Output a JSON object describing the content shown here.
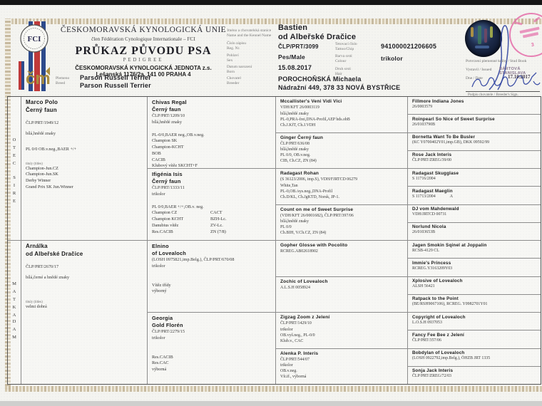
{
  "header": {
    "union": "ČESKOMORAVSKÁ KYNOLOGICKÁ UNIE",
    "member_line": "člen Fédération Cynologique Internationale – FCI",
    "doc_title": "PRŮKAZ PŮVODU PSA",
    "doc_subtitle": "PEDIGREE",
    "org_name": "ČESKOMORAVSKÁ KYNOLOGICKÁ JEDNOTA z.s.",
    "org_address": "Lešanská 1176/2a, 141 00 PRAHA 4",
    "breed_label": {
      "cz": "Plemeno",
      "en": "Breed"
    },
    "breed": [
      "Parson Russell Terrier",
      "Parson Russell Terrier"
    ],
    "fci_logo_text": "FCI",
    "cmku_logo_text": "čm"
  },
  "dog": {
    "labels": {
      "name": {
        "cz": "Jméno a chovatelská stanice",
        "en": "Name and the Kennel Name"
      },
      "reg": {
        "cz": "Číslo zápisu",
        "en": "Reg. Nr."
      },
      "sex": {
        "cz": "Pohlaví",
        "en": "Sex"
      },
      "born": {
        "cz": "Datum narození",
        "en": "Born"
      },
      "breeder": {
        "cz": "Chovatel",
        "en": "Breeder"
      },
      "tattoo": {
        "cz": "Tetovací číslo",
        "en": "Tattoo/Chip"
      },
      "colour": {
        "cz": "Barva srsti",
        "en": "Colour"
      },
      "hair": {
        "cz": "Druh srsti",
        "en": "Hair"
      }
    },
    "name": [
      "Bastien",
      "od Albeřské Dračice"
    ],
    "reg_no": "ČLP/PRT/3099",
    "sex": "Pes/Male",
    "born": "15.08.2017",
    "tattoo": "941000021206605",
    "colour": "trikolor",
    "hair": "",
    "breeder": [
      "POROCHOŇSKÁ Michaela",
      "Nádražní 449, 378 33 NOVÁ BYSTŘICE"
    ]
  },
  "certification": {
    "studbook_label": "Potvrzení plemenné knihy / Stud Book",
    "issued_label": "Vystavil / Issued",
    "issued_by": "BÁRTOVÁ STANISLAVA",
    "date_label": "Dne / Date",
    "date": "17.10.2017",
    "sign_label": "Podpis chovatele / Breeder's Sign.",
    "stamp_digit": "3"
  },
  "colors": {
    "accent_red": "#c03a3a",
    "accent_blue": "#2c4a8c",
    "stamp_pink": "#e56ca9",
    "signature_blue": "#2b3f9e",
    "logo_gold": "#a98d3f"
  },
  "pedigree": {
    "vertical": {
      "sire_cz": "OTEC",
      "sire_en": "SIRE",
      "dam_cz": "MATKA",
      "dam_en": "DAM"
    },
    "titles_label": "tituly (titles)",
    "gen1": [
      {
        "name": [
          "Marco Polo",
          "Černý faun"
        ],
        "reg": "ČLP/PRT/1949/12",
        "colour": "bílá,hnědé znaky",
        "health": "PL 0/0 OB.v.neg.,BAER +/+",
        "titles_label": true,
        "titles": [
          "Champion-Jun.CZ",
          "Champion-Jun.SK",
          "Derby Winner",
          "Grand Prix SK Jun.Winner"
        ]
      },
      {
        "name": [
          "Arnálka",
          "od Albeřské Dračice"
        ],
        "reg": "ČLP/PRT/2670/17",
        "colour": "bílá,černé a hnědé znaky",
        "titles_label": true,
        "titles": [
          "velmi dobrá"
        ]
      }
    ],
    "gen2": [
      {
        "name": [
          "Chivas Regal",
          "Černý faun"
        ],
        "reg": "ČLP/PRT/1209/10",
        "colour": "bílá,hnědé znaky",
        "health": "PL-0/0,BAER neg.,OB.v.neg.",
        "titles": [
          "Champion SK",
          "Champion-KCHT",
          "BOB",
          "CACIB",
          "Klubový vítěz SKCHT+F"
        ]
      },
      {
        "name": [
          "Ifigénia Isis",
          "Černý faun"
        ],
        "reg": "ČLP/PRT/1333/11",
        "colour": "trikolor",
        "health": "PL 0/0,BAER +/+,OB.v. neg.",
        "titles": [
          "Champion CZ",
          "Champion KCHT",
          "Danubius vítěz",
          "Res.CACIB"
        ],
        "titles2": [
          "CACT",
          "BZH-Lc.",
          "ZV-Lc.",
          "ZN (7/8)"
        ]
      },
      {
        "name": [
          "Elnino",
          "of Lovealoch"
        ],
        "reg": "(LOSH 0975821,imp.Belg.), ČLP/PRT/670/08",
        "colour": "trikolor",
        "titles": [
          "Vítěz třídy",
          "výborný"
        ]
      },
      {
        "name": [
          "Georgia",
          "Gold Florén"
        ],
        "reg": "ČLP/PRT/2279/15",
        "colour": "trikolor",
        "titles": [
          "Res.CACIB",
          "Res.CAC",
          "výborná"
        ]
      }
    ],
    "gen3": [
      {
        "name": "Mccallister's Veni Vidi Vici",
        "lines": [
          "VDH/KFT 26/0003119",
          "bílá,hnědé znaky",
          "PL-0,PRA-frei,DNA-Profil,AEP bds.obB",
          "Ch.J.KfT, Ch.J.VDH"
        ]
      },
      {
        "name": "Ginger Černý faun",
        "lines": [
          "ČLP/PRT/636/08",
          "bílá,hnědé znaky",
          "PL 0/0, OB.v.neg.",
          "CIB, Ch.CZ, ZN (84)"
        ]
      },
      {
        "name": "Radagast Rohan",
        "lines": [
          "(S 36123/2006, imp.S), VDH/FJRTCD 06279",
          "White,Tan",
          "PL-0,OB./sys.neg.,DNA-Profil",
          "Ch.D/KL, Ch.JgKTD, Norsk, JP-1."
        ]
      },
      {
        "name": "Count on me of Sweet Surprise",
        "lines": [
          "(VDH/KFT 26/0001682), ČLP/PRT/397/06",
          "bílá,hnědé znaky",
          "PL 0/0",
          "Ch.BIH, V.Ch.CZ, ZN (84)"
        ]
      },
      {
        "name": "Gopher Glosse with Pocolito",
        "lines": [
          "RCREG.AB02618902"
        ]
      },
      {
        "name": "Zochic of Lovealoch",
        "lines": [
          "A.L.S.H 0058924"
        ]
      },
      {
        "name": "Zigzag Zoom z Jelení",
        "lines": [
          "ČLP/PRT/1429/10",
          "trikolor",
          "OB.vyš.neg., PL-0/0",
          "Klub.v., CAC"
        ]
      },
      {
        "name": "Alenka P. Interis",
        "lines": [
          "ČLP/PRT/544/07",
          "trikolor",
          "OB.v.neg.",
          "Vít.tř., výborná"
        ]
      }
    ],
    "gen4": [
      {
        "name": "Fillmore Indiana Jones",
        "reg": "26/0003579"
      },
      {
        "name": "Roinpearl So Nice of Sweet Surprise",
        "reg": "26/0103790B"
      },
      {
        "name": "Bornetta Want To Be Busler",
        "reg": "(KC Y0700402Y01,imp.GB), DKK 09592/99"
      },
      {
        "name": "Rose Jack Interis",
        "reg": "ČLP/PRT/ZREG/39/00"
      },
      {
        "name": "Radagast Skugglase",
        "reg": "S 11716/2004"
      },
      {
        "name": "Radagast Maeglin",
        "reg": "S 11713/2004",
        "extra": "A"
      },
      {
        "name": "DJ vom Mahdenwald",
        "reg": "VDH/JRTCD 00731"
      },
      {
        "name": "Norlund Nicola",
        "reg": "26/0103653B"
      },
      {
        "name": "Jagen Smokin Sqinel at Joppalin",
        "reg": "RCSB-4129 CL"
      },
      {
        "name": "Immie's Princess",
        "reg": "RCREG.Y3163209Y03"
      },
      {
        "name": "Xplosive of Lovealoch",
        "reg": "ALSH 56421"
      },
      {
        "name": "Ratpack to the Point",
        "reg": "(BE/RSH9067106), RCREG. Y0982701Y01"
      },
      {
        "name": "Copyright of Lovealoch",
        "reg": "L.O.S.H 0937053"
      },
      {
        "name": "Fancy Fee Bee z Jelení",
        "reg": "ČLP/PRT/357/06"
      },
      {
        "name": "Bobdylan of Lovealoch",
        "reg": "(LOSH 0922792,imp.Belg.), ÖHZB JRT 1335"
      },
      {
        "name": "Sonja Jack Interis",
        "reg": "ČLP/PRT/ZREG/72/03"
      }
    ]
  }
}
